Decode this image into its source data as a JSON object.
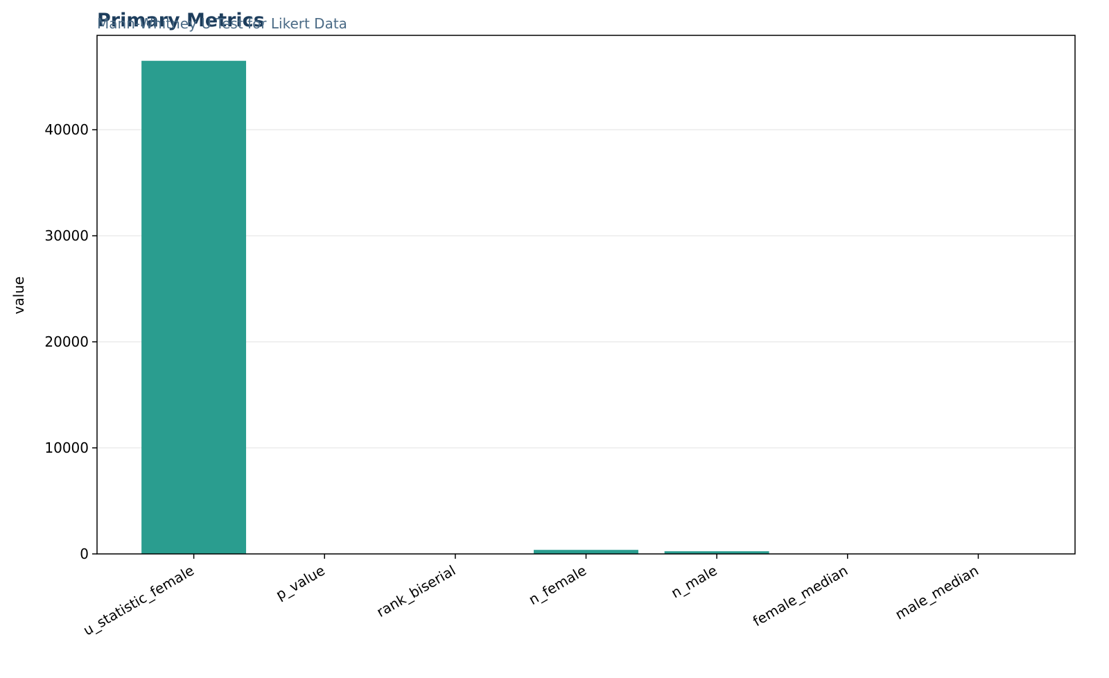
{
  "chart_data": {
    "type": "bar",
    "title": "Primary Metrics",
    "subtitle": "Mann-Whitney U Test for Likert Data",
    "y_label": "value",
    "categories": [
      "u_statistic_female",
      "p_value",
      "rank_biserial",
      "n_female",
      "n_male",
      "female_median",
      "male_median"
    ],
    "values": [
      46500,
      0.01,
      0.05,
      380,
      250,
      4,
      4
    ],
    "color": "#2a9d8f",
    "ylim": [
      0,
      48900
    ],
    "yticks": [
      0,
      10000,
      20000,
      30000,
      40000
    ],
    "grid": true
  }
}
